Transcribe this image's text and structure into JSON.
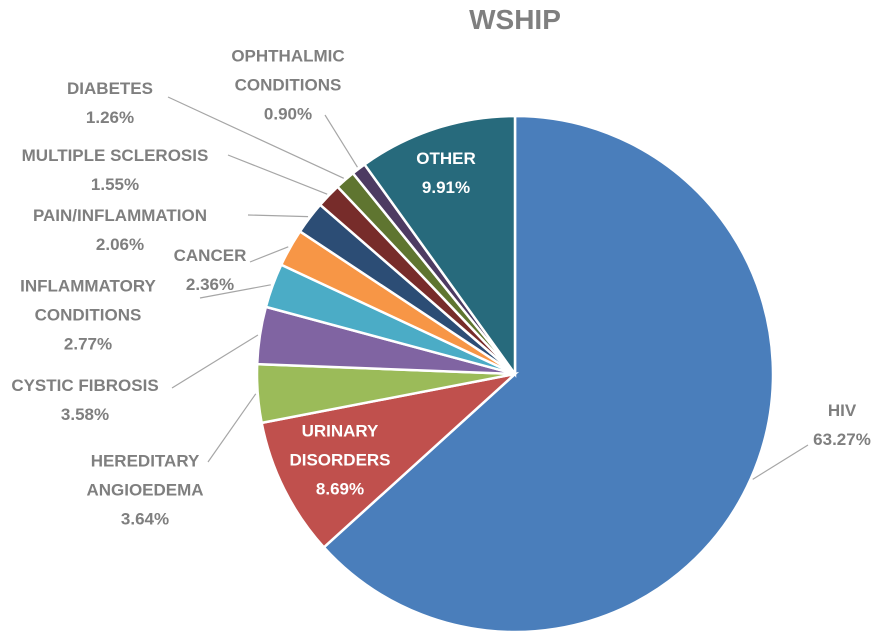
{
  "chart_data": {
    "type": "pie",
    "title": "WSHIP",
    "categories": [
      "HIV",
      "URINARY DISORDERS",
      "HEREDITARY ANGIOEDEMA",
      "CYSTIC FIBROSIS",
      "INFLAMMATORY CONDITIONS",
      "CANCER",
      "PAIN/INFLAMMATION",
      "MULTIPLE SCLEROSIS",
      "DIABETES",
      "OPHTHALMIC CONDITIONS",
      "OTHER"
    ],
    "values": [
      63.27,
      8.69,
      3.64,
      3.58,
      2.77,
      2.36,
      2.06,
      1.55,
      1.26,
      0.9,
      9.91
    ],
    "value_labels": [
      "63.27%",
      "8.69%",
      "3.64%",
      "3.58%",
      "2.77%",
      "2.36%",
      "2.06%",
      "1.55%",
      "1.26%",
      "0.90%",
      "9.91%"
    ],
    "colors": [
      "#4a7ebb",
      "#c0504d",
      "#9bbb59",
      "#8064a2",
      "#4bacc6",
      "#f79646",
      "#2c4d75",
      "#772c2a",
      "#5f7530",
      "#4d3b62",
      "#276a7c"
    ]
  }
}
